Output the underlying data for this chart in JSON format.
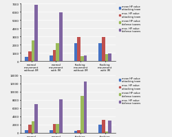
{
  "top_chart": {
    "categories": [
      "normal\nmovement\nwithout IM",
      "normal\nmovement\nwith IM",
      "flocking\nmovement\nwithout IM",
      "flocking\nmovement\nwith IM"
    ],
    "series": [
      {
        "label": "mean HP value\nattacking team",
        "color": "#4472c4",
        "values": [
          500,
          700,
          2200,
          2200
        ]
      },
      {
        "label": "max. HP value\nattacking team",
        "color": "#c0504d",
        "values": [
          1200,
          1300,
          2900,
          2900
        ]
      },
      {
        "label": "mean HP value\ndefense towers",
        "color": "#9bbb59",
        "values": [
          2500,
          2200,
          600,
          800
        ]
      },
      {
        "label": "max. HP value\ndefense towers",
        "color": "#8064a2",
        "values": [
          6800,
          5900,
          700,
          900
        ]
      }
    ],
    "ylim": [
      0,
      7000
    ],
    "yticks": [
      0,
      1000,
      2000,
      3000,
      4000,
      5000,
      6000,
      7000
    ]
  },
  "bottom_chart": {
    "categories": [
      "normal\nmovement\nwithout IM",
      "normal\nmovement\nwith IM",
      "flocking\nmovement\nwithout IM",
      "flocking\nmovement\nwith IM"
    ],
    "series": [
      {
        "label": "mean HP value\nattacking team",
        "color": "#4472c4",
        "values": [
          700,
          700,
          500,
          2000
        ]
      },
      {
        "label": "max. HP value\nattacking team",
        "color": "#c0504d",
        "values": [
          2000,
          2200,
          600,
          3200
        ]
      },
      {
        "label": "mean HP value\ndefense towers",
        "color": "#9bbb59",
        "values": [
          2800,
          2200,
          9000,
          300
        ]
      },
      {
        "label": "max. HP value\ndefense towers",
        "color": "#8064a2",
        "values": [
          7000,
          8200,
          12500,
          3000
        ]
      }
    ],
    "ylim": [
      0,
      14000
    ],
    "yticks": [
      0,
      2000,
      4000,
      6000,
      8000,
      10000,
      12000,
      14000
    ]
  },
  "legend_top": [
    "mean HP value\nattacking team",
    "max. HP value\nattacking team",
    "mean HP value\ndefense towers",
    "max. HP value\ndefense towers"
  ],
  "legend_bottom": [
    "mean HP value\nattacking team",
    "max. HP value\nattacking team",
    "mean HP value\ndefense towers",
    "max. HP value\ndefense towers"
  ],
  "legend_colors": [
    "#4472c4",
    "#c0504d",
    "#9bbb59",
    "#8064a2"
  ],
  "background_color": "#f0f0f0",
  "grid_color": "#ffffff"
}
